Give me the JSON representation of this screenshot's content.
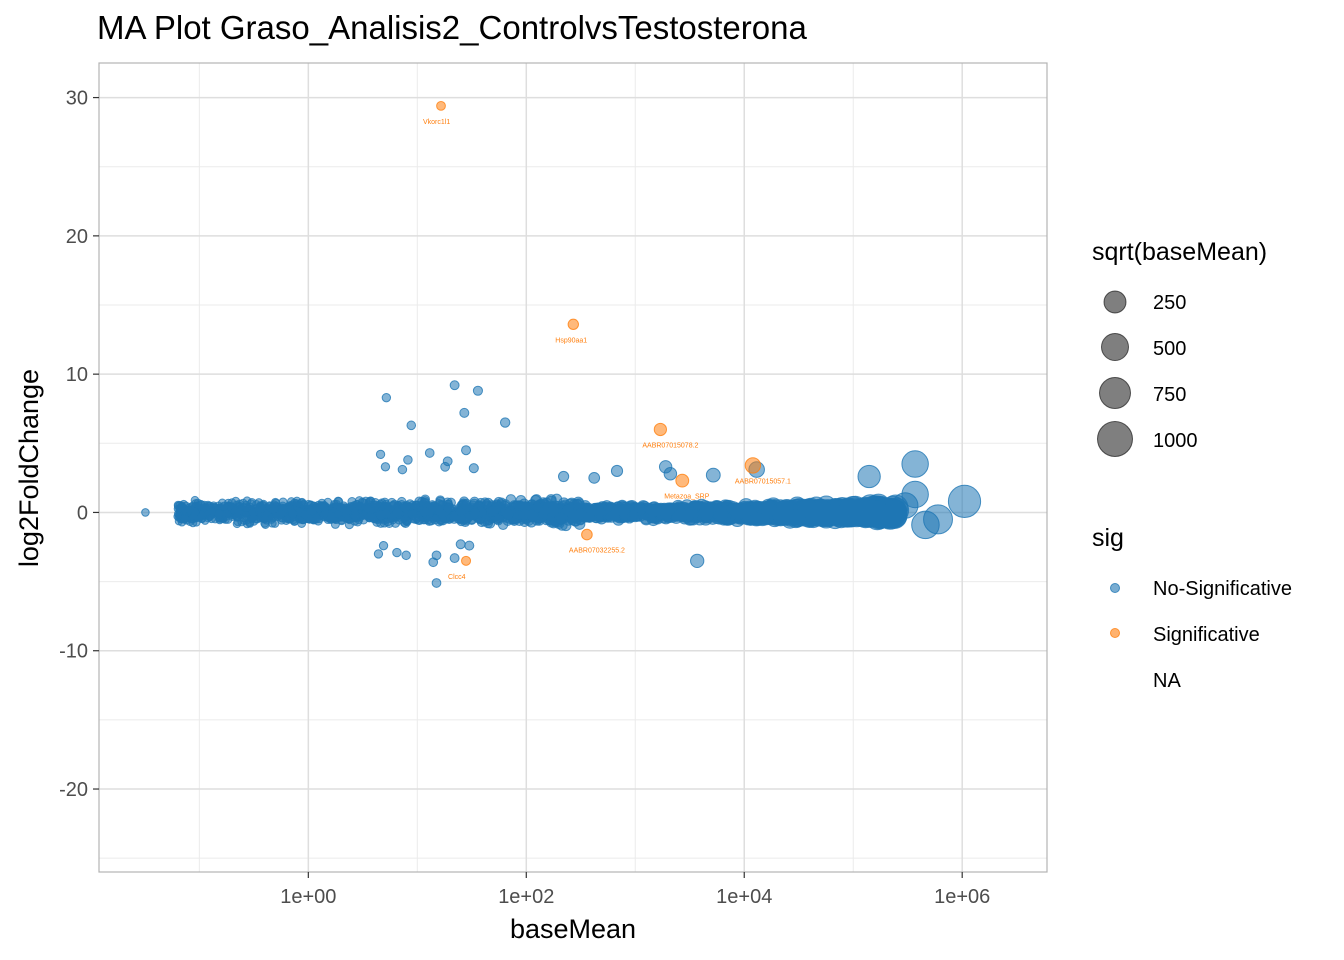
{
  "chart_data": {
    "type": "scatter",
    "title": "MA Plot Graso_Analisis2_ControlvsTestosterona",
    "xlabel": "baseMean",
    "ylabel": "log2FoldChange",
    "x_scale": "log10",
    "xlim": [
      0.012,
      6000000
    ],
    "ylim": [
      -26,
      32.5
    ],
    "x_ticks": [
      1,
      100,
      10000,
      1000000
    ],
    "x_tick_labels": [
      "1e+00",
      "1e+02",
      "1e+04",
      "1e+06"
    ],
    "y_ticks": [
      30,
      20,
      10,
      0,
      -10,
      -20
    ],
    "y_tick_labels": [
      "30",
      "20",
      "10",
      "0",
      "-10",
      "-20"
    ],
    "grid": true,
    "legend_position": "right",
    "colors": {
      "No-Significative": "#1f77b4",
      "Significative": "#ff7f0e"
    },
    "size_legend": {
      "title": "sqrt(baseMean)",
      "values": [
        "250",
        "500",
        "750",
        "1000"
      ]
    },
    "color_legend": {
      "title": "sig",
      "entries": [
        "No-Significative",
        "Significative",
        "NA"
      ]
    },
    "series": [
      {
        "name": "No-Significative",
        "points": [
          {
            "x": 0.032,
            "y": 0.0
          },
          {
            "x": 5.2,
            "y": 8.3
          },
          {
            "x": 8.8,
            "y": 6.3
          },
          {
            "x": 22,
            "y": 9.2
          },
          {
            "x": 36,
            "y": 8.8
          },
          {
            "x": 27,
            "y": 7.2
          },
          {
            "x": 64,
            "y": 6.5
          },
          {
            "x": 4.6,
            "y": 4.2
          },
          {
            "x": 13,
            "y": 4.3
          },
          {
            "x": 28,
            "y": 4.5
          },
          {
            "x": 8.2,
            "y": 3.8
          },
          {
            "x": 19,
            "y": 3.7
          },
          {
            "x": 5.1,
            "y": 3.3
          },
          {
            "x": 7.3,
            "y": 3.1
          },
          {
            "x": 18,
            "y": 3.3
          },
          {
            "x": 33,
            "y": 3.2
          },
          {
            "x": 4.9,
            "y": -2.4
          },
          {
            "x": 6.5,
            "y": -2.9
          },
          {
            "x": 4.4,
            "y": -3.0
          },
          {
            "x": 7.9,
            "y": -3.1
          },
          {
            "x": 15,
            "y": -3.1
          },
          {
            "x": 22,
            "y": -3.3
          },
          {
            "x": 14,
            "y": -3.6
          },
          {
            "x": 30,
            "y": -2.4
          },
          {
            "x": 15,
            "y": -5.1
          },
          {
            "x": 25,
            "y": -2.3
          },
          {
            "x": 1900,
            "y": 3.3
          },
          {
            "x": 2100,
            "y": 2.8
          },
          {
            "x": 5200,
            "y": 2.7
          },
          {
            "x": 13000,
            "y": 3.1
          },
          {
            "x": 680,
            "y": 3.0
          },
          {
            "x": 220,
            "y": 2.6
          },
          {
            "x": 420,
            "y": 2.5
          },
          {
            "x": 3700,
            "y": -3.5
          },
          {
            "x": 140000,
            "y": 2.6
          },
          {
            "x": 370000,
            "y": 3.5
          },
          {
            "x": 370000,
            "y": 1.3
          },
          {
            "x": 300000,
            "y": 0.5
          },
          {
            "x": 1050000,
            "y": 0.8
          },
          {
            "x": 600000,
            "y": -0.5
          },
          {
            "x": 460000,
            "y": -0.9
          },
          {
            "x": 150000,
            "y": -0.1
          },
          {
            "x": 100000,
            "y": 0.4
          },
          {
            "x": 38000,
            "y": 0.3
          },
          {
            "x": 22000,
            "y": -0.2
          }
        ]
      },
      {
        "name": "Significative",
        "points": [
          {
            "x": 16.5,
            "y": 29.4,
            "label": "Vkorc1l1"
          },
          {
            "x": 270,
            "y": 13.6,
            "label": "Hsp90aa1"
          },
          {
            "x": 1700,
            "y": 6.0,
            "label": "AABR07015078.2"
          },
          {
            "x": 12000,
            "y": 3.4,
            "label": "AABR07015057.1"
          },
          {
            "x": 2700,
            "y": 2.3,
            "label": "Metazoa_SRP"
          },
          {
            "x": 360,
            "y": -1.6,
            "label": "AABR07032255.2"
          },
          {
            "x": 28,
            "y": -3.5,
            "label": "Clcc4"
          }
        ]
      }
    ]
  }
}
